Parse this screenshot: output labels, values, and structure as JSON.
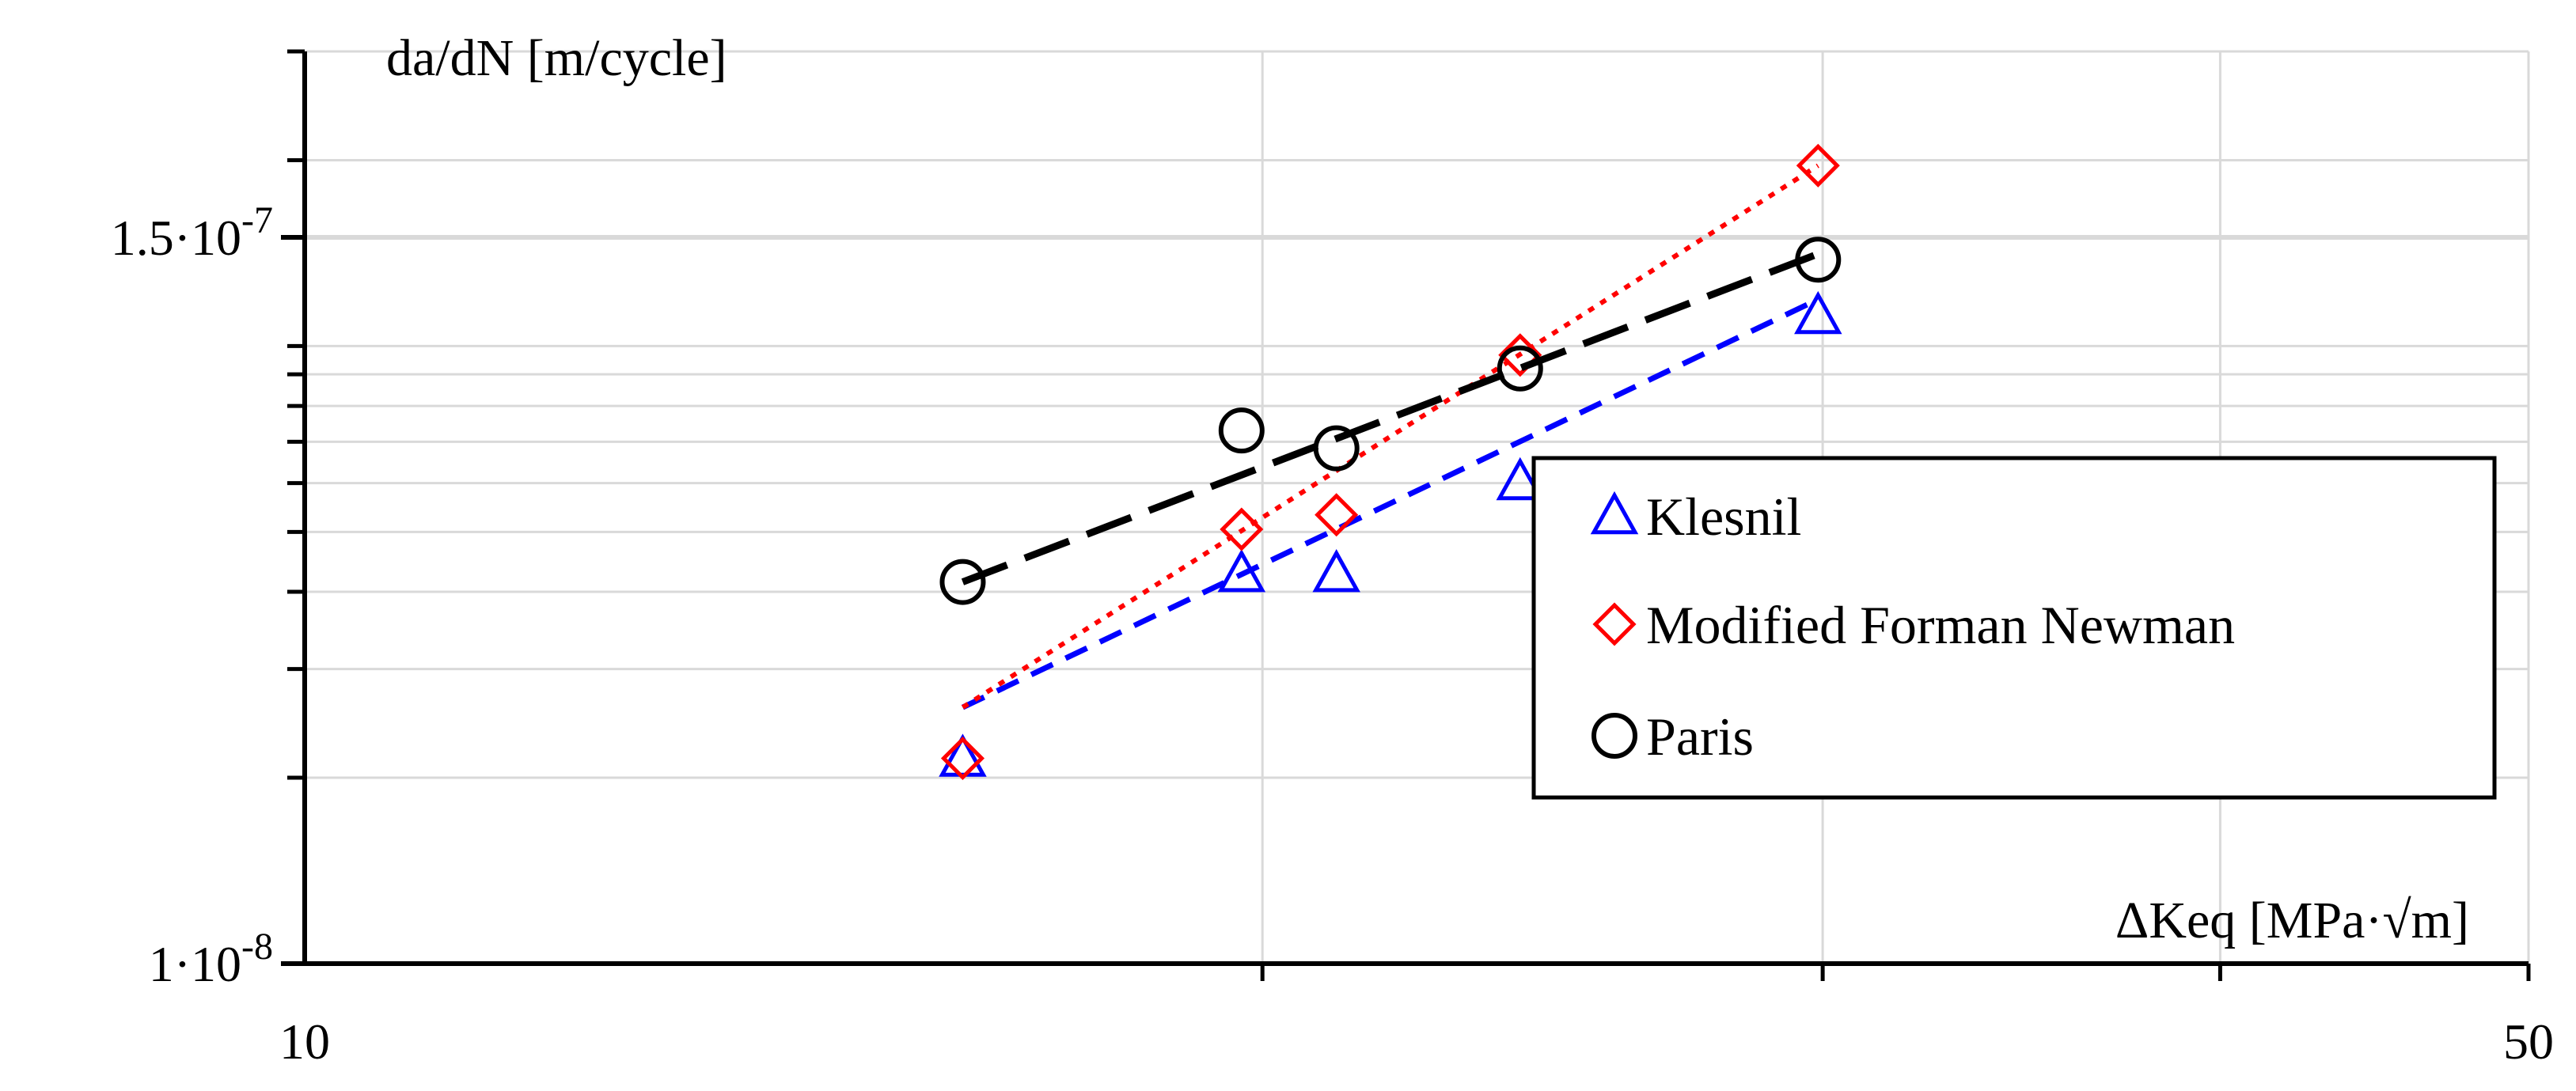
{
  "chart_data": {
    "type": "scatter",
    "xscale": "log",
    "yscale": "log",
    "xlim": [
      10,
      50
    ],
    "ylim": [
      1e-08,
      3e-07
    ],
    "x_ticks": [
      {
        "value": 10,
        "label": "10"
      },
      {
        "value": 50,
        "label": "50"
      }
    ],
    "y_ticks": [
      {
        "value": 1e-08,
        "label_base": "1·10",
        "label_exp": "-8"
      },
      {
        "value": 1.5e-07,
        "label_base": "1.5·10",
        "label_exp": "-7"
      }
    ],
    "xlabel": "ΔKeq [MPa·√m]",
    "ylabel": "da/dN [m/cycle]",
    "grid": true,
    "legend_position": "bottom-right",
    "series": [
      {
        "name": "Klesnil",
        "color": "#0000ff",
        "marker": "triangle",
        "line": "dashed",
        "x": [
          16.1,
          19.7,
          21.1,
          24.1,
          29.9
        ],
        "y": [
          2.15e-08,
          4.28e-08,
          4.28e-08,
          6.03e-08,
          1.12e-07
        ],
        "line_x": [
          16.1,
          29.9
        ],
        "line_y": [
          2.6e-08,
          1.19e-07
        ]
      },
      {
        "name": "Modified Forman Newman",
        "color": "#ff0000",
        "marker": "diamond",
        "line": "dotted",
        "x": [
          16.1,
          19.7,
          21.1,
          24.1,
          29.9
        ],
        "y": [
          2.15e-08,
          5.05e-08,
          5.33e-08,
          9.67e-08,
          1.96e-07
        ],
        "line_x": [
          16.1,
          29.9
        ],
        "line_y": [
          2.6e-08,
          1.96e-07
        ]
      },
      {
        "name": "Paris",
        "color": "#000000",
        "marker": "circle",
        "line": "long-dashed",
        "x": [
          16.1,
          19.7,
          21.1,
          24.1,
          29.9
        ],
        "y": [
          4.15e-08,
          7.3e-08,
          6.83e-08,
          9.2e-08,
          1.38e-07
        ],
        "line_x": [
          16.1,
          29.9
        ],
        "line_y": [
          4.15e-08,
          1.41e-07
        ]
      }
    ]
  }
}
